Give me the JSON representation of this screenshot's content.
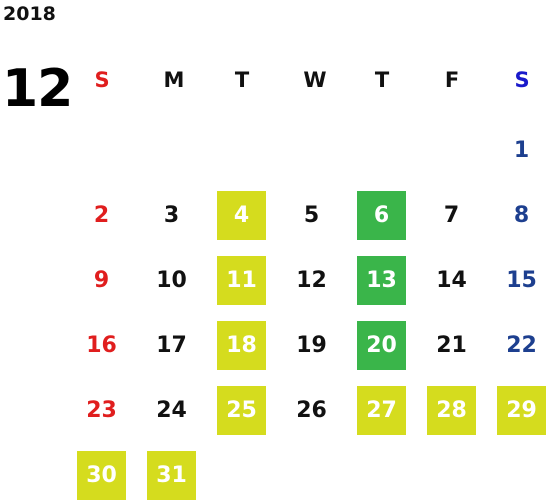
{
  "year": "2018",
  "month": "12",
  "weekdays": [
    "S",
    "M",
    "T",
    "W",
    "T",
    "F",
    "S"
  ],
  "colors": {
    "sunday": "#e01e1e",
    "saturday_header": "#1a1acb",
    "saturday_date": "#1d3f8f",
    "holiday_lime": "#d5dc1e",
    "event_green": "#3ab54a"
  },
  "weeks": [
    [
      {
        "day": "",
        "mark": ""
      },
      {
        "day": "",
        "mark": ""
      },
      {
        "day": "",
        "mark": ""
      },
      {
        "day": "",
        "mark": ""
      },
      {
        "day": "",
        "mark": ""
      },
      {
        "day": "",
        "mark": ""
      },
      {
        "day": "1",
        "mark": ""
      }
    ],
    [
      {
        "day": "2",
        "mark": ""
      },
      {
        "day": "3",
        "mark": ""
      },
      {
        "day": "4",
        "mark": "lime"
      },
      {
        "day": "5",
        "mark": ""
      },
      {
        "day": "6",
        "mark": "green"
      },
      {
        "day": "7",
        "mark": ""
      },
      {
        "day": "8",
        "mark": ""
      }
    ],
    [
      {
        "day": "9",
        "mark": ""
      },
      {
        "day": "10",
        "mark": ""
      },
      {
        "day": "11",
        "mark": "lime"
      },
      {
        "day": "12",
        "mark": ""
      },
      {
        "day": "13",
        "mark": "green"
      },
      {
        "day": "14",
        "mark": ""
      },
      {
        "day": "15",
        "mark": ""
      }
    ],
    [
      {
        "day": "16",
        "mark": ""
      },
      {
        "day": "17",
        "mark": ""
      },
      {
        "day": "18",
        "mark": "lime"
      },
      {
        "day": "19",
        "mark": ""
      },
      {
        "day": "20",
        "mark": "green"
      },
      {
        "day": "21",
        "mark": ""
      },
      {
        "day": "22",
        "mark": ""
      }
    ],
    [
      {
        "day": "23",
        "mark": ""
      },
      {
        "day": "24",
        "mark": ""
      },
      {
        "day": "25",
        "mark": "lime"
      },
      {
        "day": "26",
        "mark": ""
      },
      {
        "day": "27",
        "mark": "lime"
      },
      {
        "day": "28",
        "mark": "lime"
      },
      {
        "day": "29",
        "mark": "lime"
      }
    ],
    [
      {
        "day": "30",
        "mark": "lime"
      },
      {
        "day": "31",
        "mark": "lime"
      },
      {
        "day": "",
        "mark": ""
      },
      {
        "day": "",
        "mark": ""
      },
      {
        "day": "",
        "mark": ""
      },
      {
        "day": "",
        "mark": ""
      },
      {
        "day": "",
        "mark": ""
      }
    ]
  ]
}
